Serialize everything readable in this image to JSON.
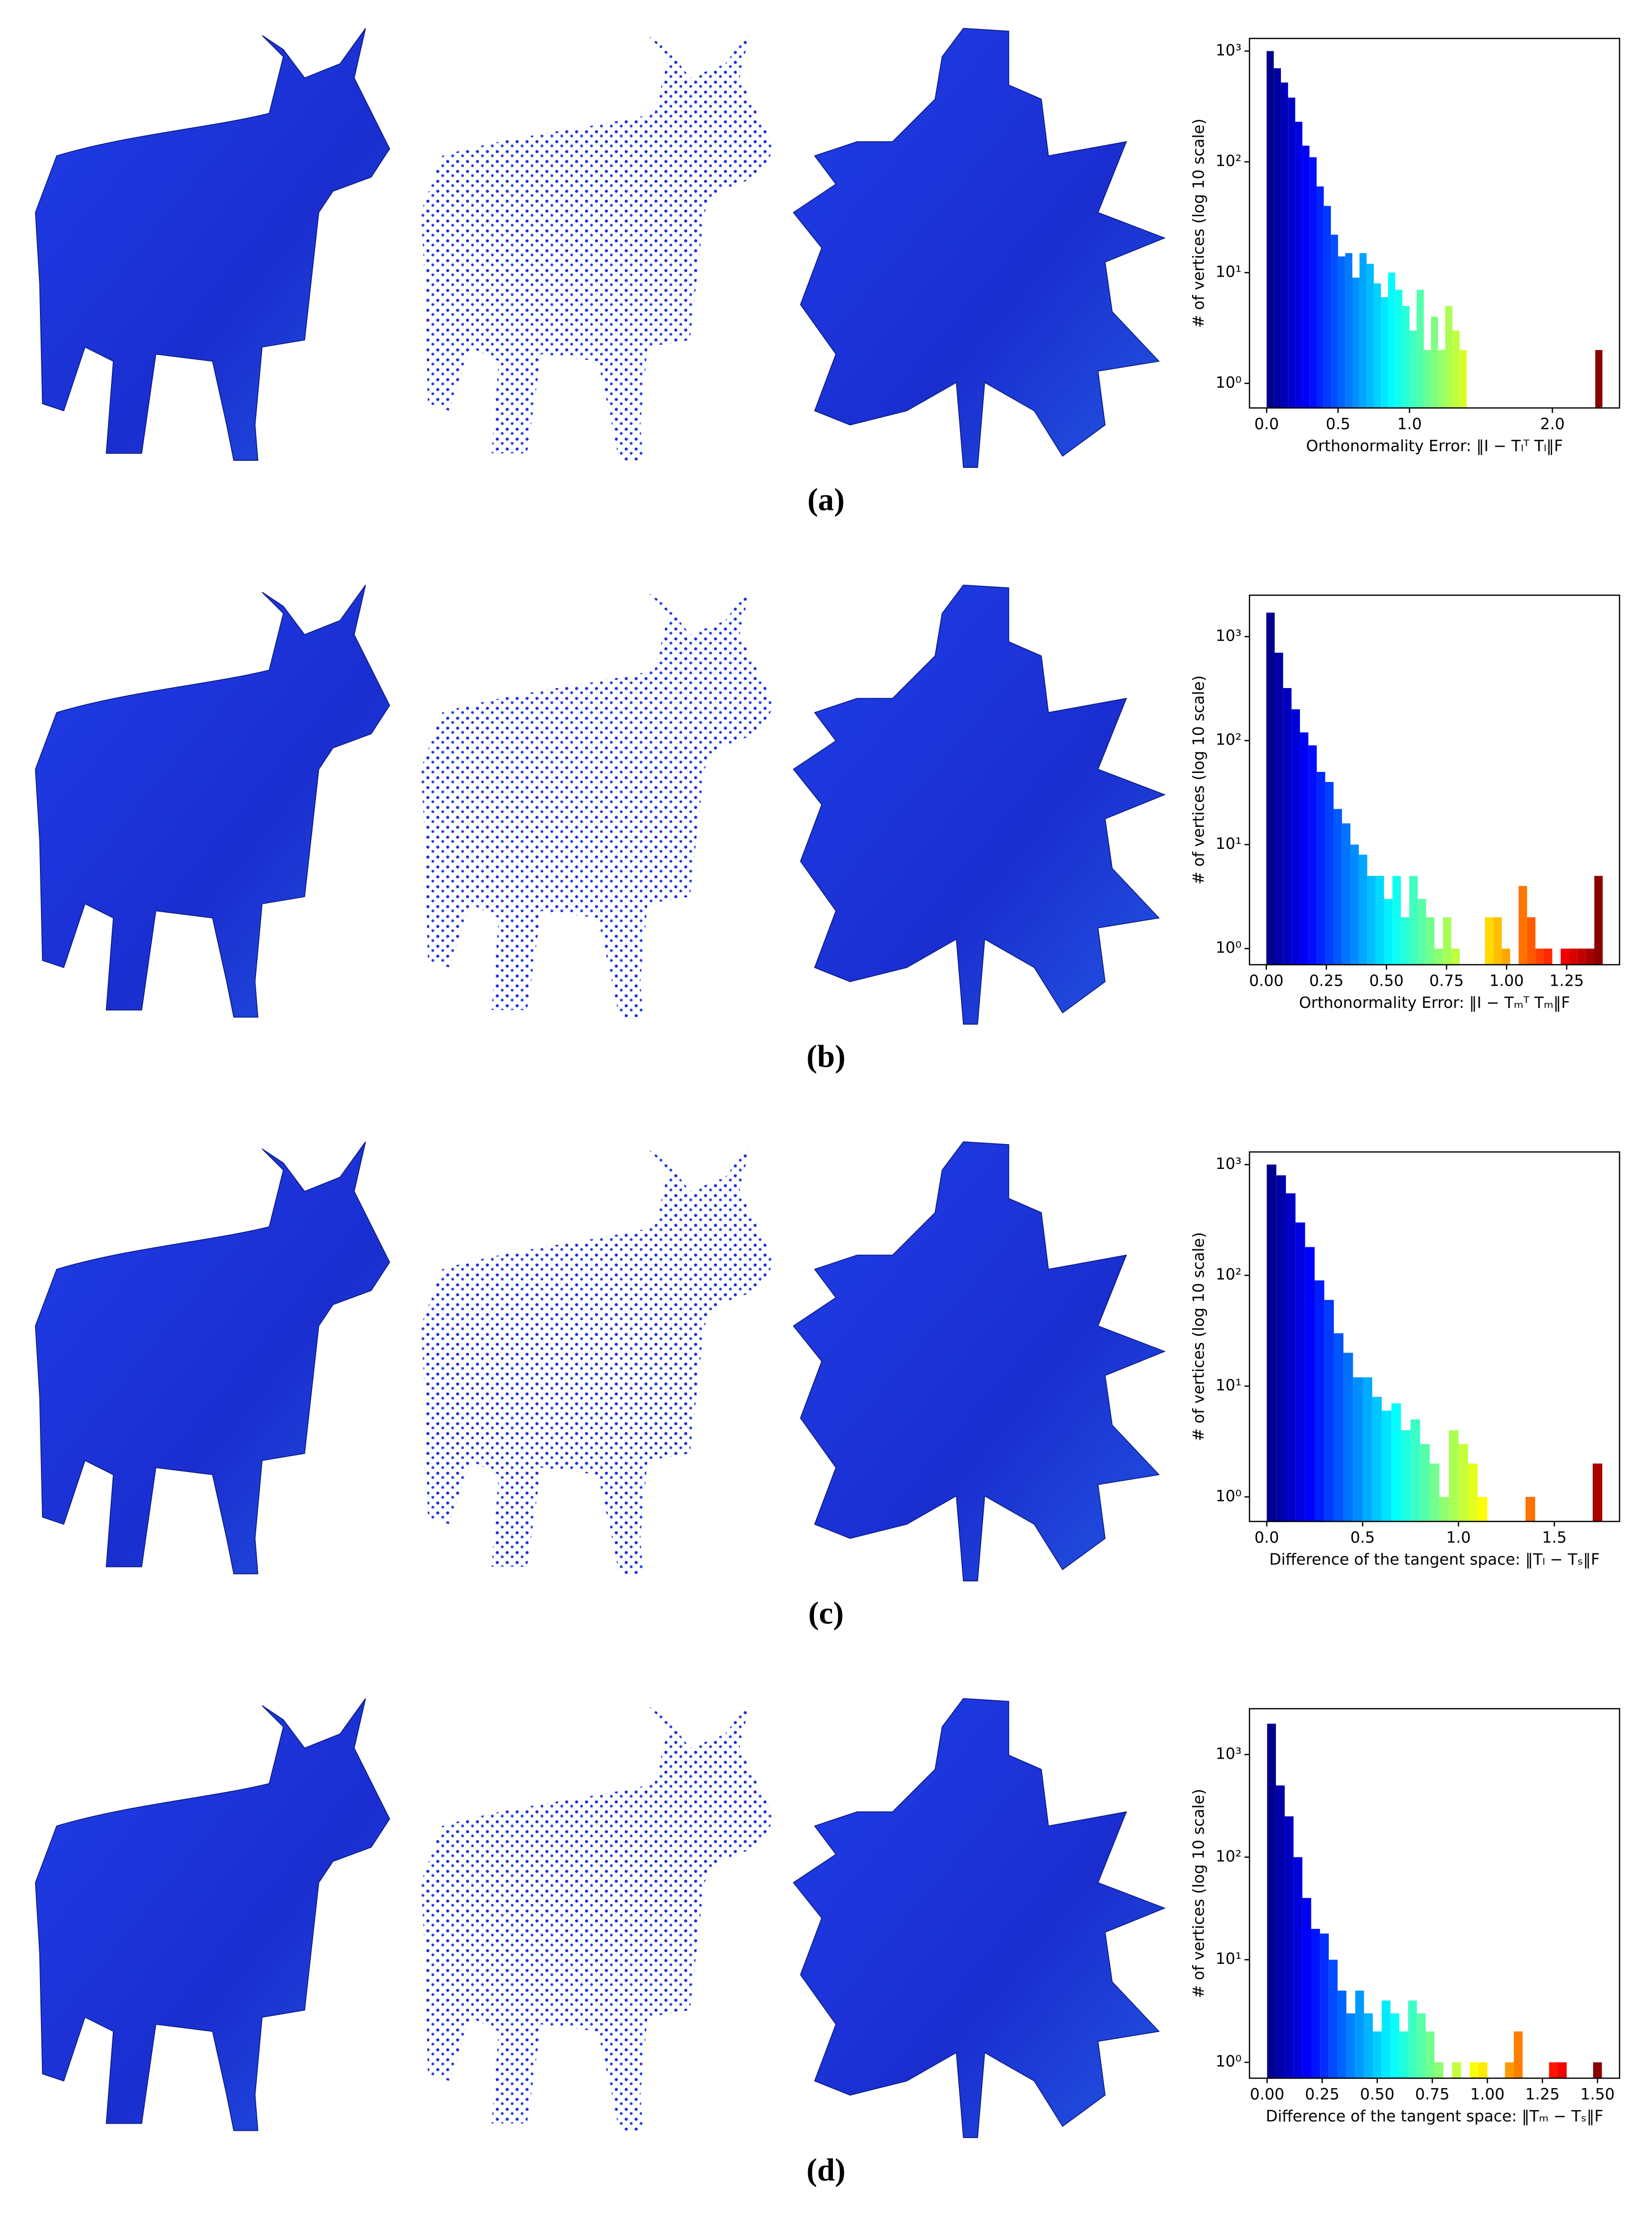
{
  "chart_data": [
    {
      "type": "histogram",
      "caption": "(a)",
      "ylabel": "# of vertices (log 10 scale)",
      "xlabel": "Orthonormality Error: ‖I − Tₗᵀ Tₗ‖F",
      "log_y": true,
      "colormap": "jet",
      "bins": [
        0,
        0.05,
        0.1,
        0.15,
        0.2,
        0.25,
        0.3,
        0.35,
        0.4,
        0.45,
        0.5,
        0.55,
        0.6,
        0.65,
        0.7,
        0.75,
        0.8,
        0.85,
        0.9,
        0.95,
        1,
        1.05,
        1.1,
        1.15,
        1.2,
        1.25,
        1.3,
        1.35,
        1.4,
        1.45,
        1.5,
        1.55,
        1.6,
        1.65,
        1.7,
        1.75,
        1.8,
        1.85,
        1.9,
        1.95,
        2,
        2.05,
        2.1,
        2.15,
        2.2,
        2.25,
        2.3,
        2.35
      ],
      "counts": [
        1000,
        700,
        520,
        380,
        230,
        140,
        110,
        60,
        40,
        22,
        14,
        15,
        9,
        15,
        12,
        8,
        6,
        10,
        7,
        5,
        3,
        7,
        2,
        4,
        2,
        5,
        3,
        2,
        0,
        0,
        0,
        0,
        0,
        0,
        0,
        0,
        0,
        0,
        0,
        0,
        0,
        0,
        0,
        0,
        0,
        0,
        2
      ],
      "xlim": [
        -0.12,
        2.47
      ],
      "xticks": [
        {
          "value": 0,
          "label": "0.0"
        },
        0.5,
        {
          "value": 1,
          "label": "1.0"
        },
        {
          "value": 2,
          "label": "2.0"
        }
      ],
      "ylim": [
        0.6,
        1300
      ],
      "yticks": [
        {
          "value": 1,
          "label": "10⁰"
        },
        {
          "value": 10,
          "label": "10¹"
        },
        {
          "value": 100,
          "label": "10²"
        },
        {
          "value": 1000,
          "label": "10³"
        }
      ]
    },
    {
      "type": "histogram",
      "caption": "(b)",
      "ylabel": "# of vertices (log 10 scale)",
      "xlabel": "Orthonormality Error: ‖I − Tₘᵀ Tₘ‖F",
      "log_y": true,
      "colormap": "jet",
      "bins": [
        0,
        0.035,
        0.07,
        0.105,
        0.14,
        0.175,
        0.21,
        0.245,
        0.28,
        0.315,
        0.35,
        0.385,
        0.42,
        0.455,
        0.49,
        0.525,
        0.56,
        0.595,
        0.63,
        0.665,
        0.7,
        0.735,
        0.77,
        0.805,
        0.84,
        0.875,
        0.91,
        0.945,
        0.98,
        1.015,
        1.05,
        1.085,
        1.12,
        1.155,
        1.19,
        1.225,
        1.26,
        1.295,
        1.33,
        1.365,
        1.4
      ],
      "counts": [
        1700,
        700,
        320,
        200,
        120,
        90,
        50,
        40,
        22,
        16,
        10,
        8,
        5,
        5,
        3,
        5,
        2,
        5,
        3,
        2,
        1,
        2,
        1,
        0,
        0,
        0,
        2,
        2,
        1,
        0,
        4,
        2,
        1,
        1,
        0,
        1,
        1,
        1,
        1,
        5
      ],
      "xlim": [
        -0.07,
        1.47
      ],
      "xticks": [
        {
          "value": 0,
          "label": "0.00"
        },
        0.25,
        {
          "value": 0.5,
          "label": "0.50"
        },
        0.75,
        {
          "value": 1,
          "label": "1.00"
        },
        1.25
      ],
      "ylim": [
        0.7,
        2500
      ],
      "yticks": [
        {
          "value": 1,
          "label": "10⁰"
        },
        {
          "value": 10,
          "label": "10¹"
        },
        {
          "value": 100,
          "label": "10²"
        },
        {
          "value": 1000,
          "label": "10³"
        }
      ]
    },
    {
      "type": "histogram",
      "caption": "(c)",
      "ylabel": "# of vertices (log 10 scale)",
      "xlabel": "Difference of the tangent space: ‖Tₗ − Tₛ‖F",
      "log_y": true,
      "colormap": "jet",
      "bins": [
        0,
        0.05,
        0.1,
        0.15,
        0.2,
        0.25,
        0.3,
        0.35,
        0.4,
        0.45,
        0.5,
        0.55,
        0.6,
        0.65,
        0.7,
        0.75,
        0.8,
        0.85,
        0.9,
        0.95,
        1,
        1.05,
        1.1,
        1.15,
        1.2,
        1.25,
        1.3,
        1.35,
        1.4,
        1.45,
        1.5,
        1.55,
        1.6,
        1.65,
        1.7,
        1.75,
        1.8
      ],
      "counts": [
        1000,
        800,
        550,
        300,
        180,
        90,
        60,
        30,
        20,
        12,
        12,
        8,
        6,
        7,
        4,
        5,
        3,
        2,
        1,
        4,
        3,
        2,
        1,
        0,
        0,
        0,
        0,
        1,
        0,
        0,
        0,
        0,
        0,
        0,
        2,
        0
      ],
      "xlim": [
        -0.09,
        1.84
      ],
      "xticks": [
        {
          "value": 0,
          "label": "0.0"
        },
        0.5,
        {
          "value": 1,
          "label": "1.0"
        },
        1.5
      ],
      "ylim": [
        0.6,
        1300
      ],
      "yticks": [
        {
          "value": 1,
          "label": "10⁰"
        },
        {
          "value": 10,
          "label": "10¹"
        },
        {
          "value": 100,
          "label": "10²"
        },
        {
          "value": 1000,
          "label": "10³"
        }
      ]
    },
    {
      "type": "histogram",
      "caption": "(d)",
      "ylabel": "# of vertices (log 10 scale)",
      "xlabel": "Difference of the tangent space: ‖Tₘ − Tₛ‖F",
      "log_y": true,
      "colormap": "jet",
      "bins": [
        0,
        0.04,
        0.08,
        0.12,
        0.16,
        0.2,
        0.24,
        0.28,
        0.32,
        0.36,
        0.4,
        0.44,
        0.48,
        0.52,
        0.56,
        0.6,
        0.64,
        0.68,
        0.72,
        0.76,
        0.8,
        0.84,
        0.88,
        0.92,
        0.96,
        1,
        1.04,
        1.08,
        1.12,
        1.16,
        1.2,
        1.24,
        1.28,
        1.32,
        1.36,
        1.4,
        1.44,
        1.48,
        1.52
      ],
      "counts": [
        2000,
        500,
        250,
        100,
        40,
        20,
        18,
        10,
        5,
        3,
        5,
        3,
        2,
        4,
        3,
        2,
        4,
        3,
        2,
        1,
        0,
        1,
        0,
        1,
        1,
        0,
        0,
        1,
        2,
        0,
        0,
        0,
        1,
        1,
        0,
        0,
        0,
        1
      ],
      "xlim": [
        -0.08,
        1.6
      ],
      "xticks": [
        {
          "value": 0,
          "label": "0.00"
        },
        0.25,
        {
          "value": 0.5,
          "label": "0.50"
        },
        0.75,
        {
          "value": 1,
          "label": "1.00"
        },
        1.25,
        {
          "value": 1.5,
          "label": "1.50"
        }
      ],
      "ylim": [
        0.7,
        2800
      ],
      "yticks": [
        {
          "value": 1,
          "label": "10⁰"
        },
        {
          "value": 10,
          "label": "10¹"
        },
        {
          "value": 100,
          "label": "10²"
        },
        {
          "value": 1000,
          "label": "10³"
        }
      ]
    }
  ]
}
